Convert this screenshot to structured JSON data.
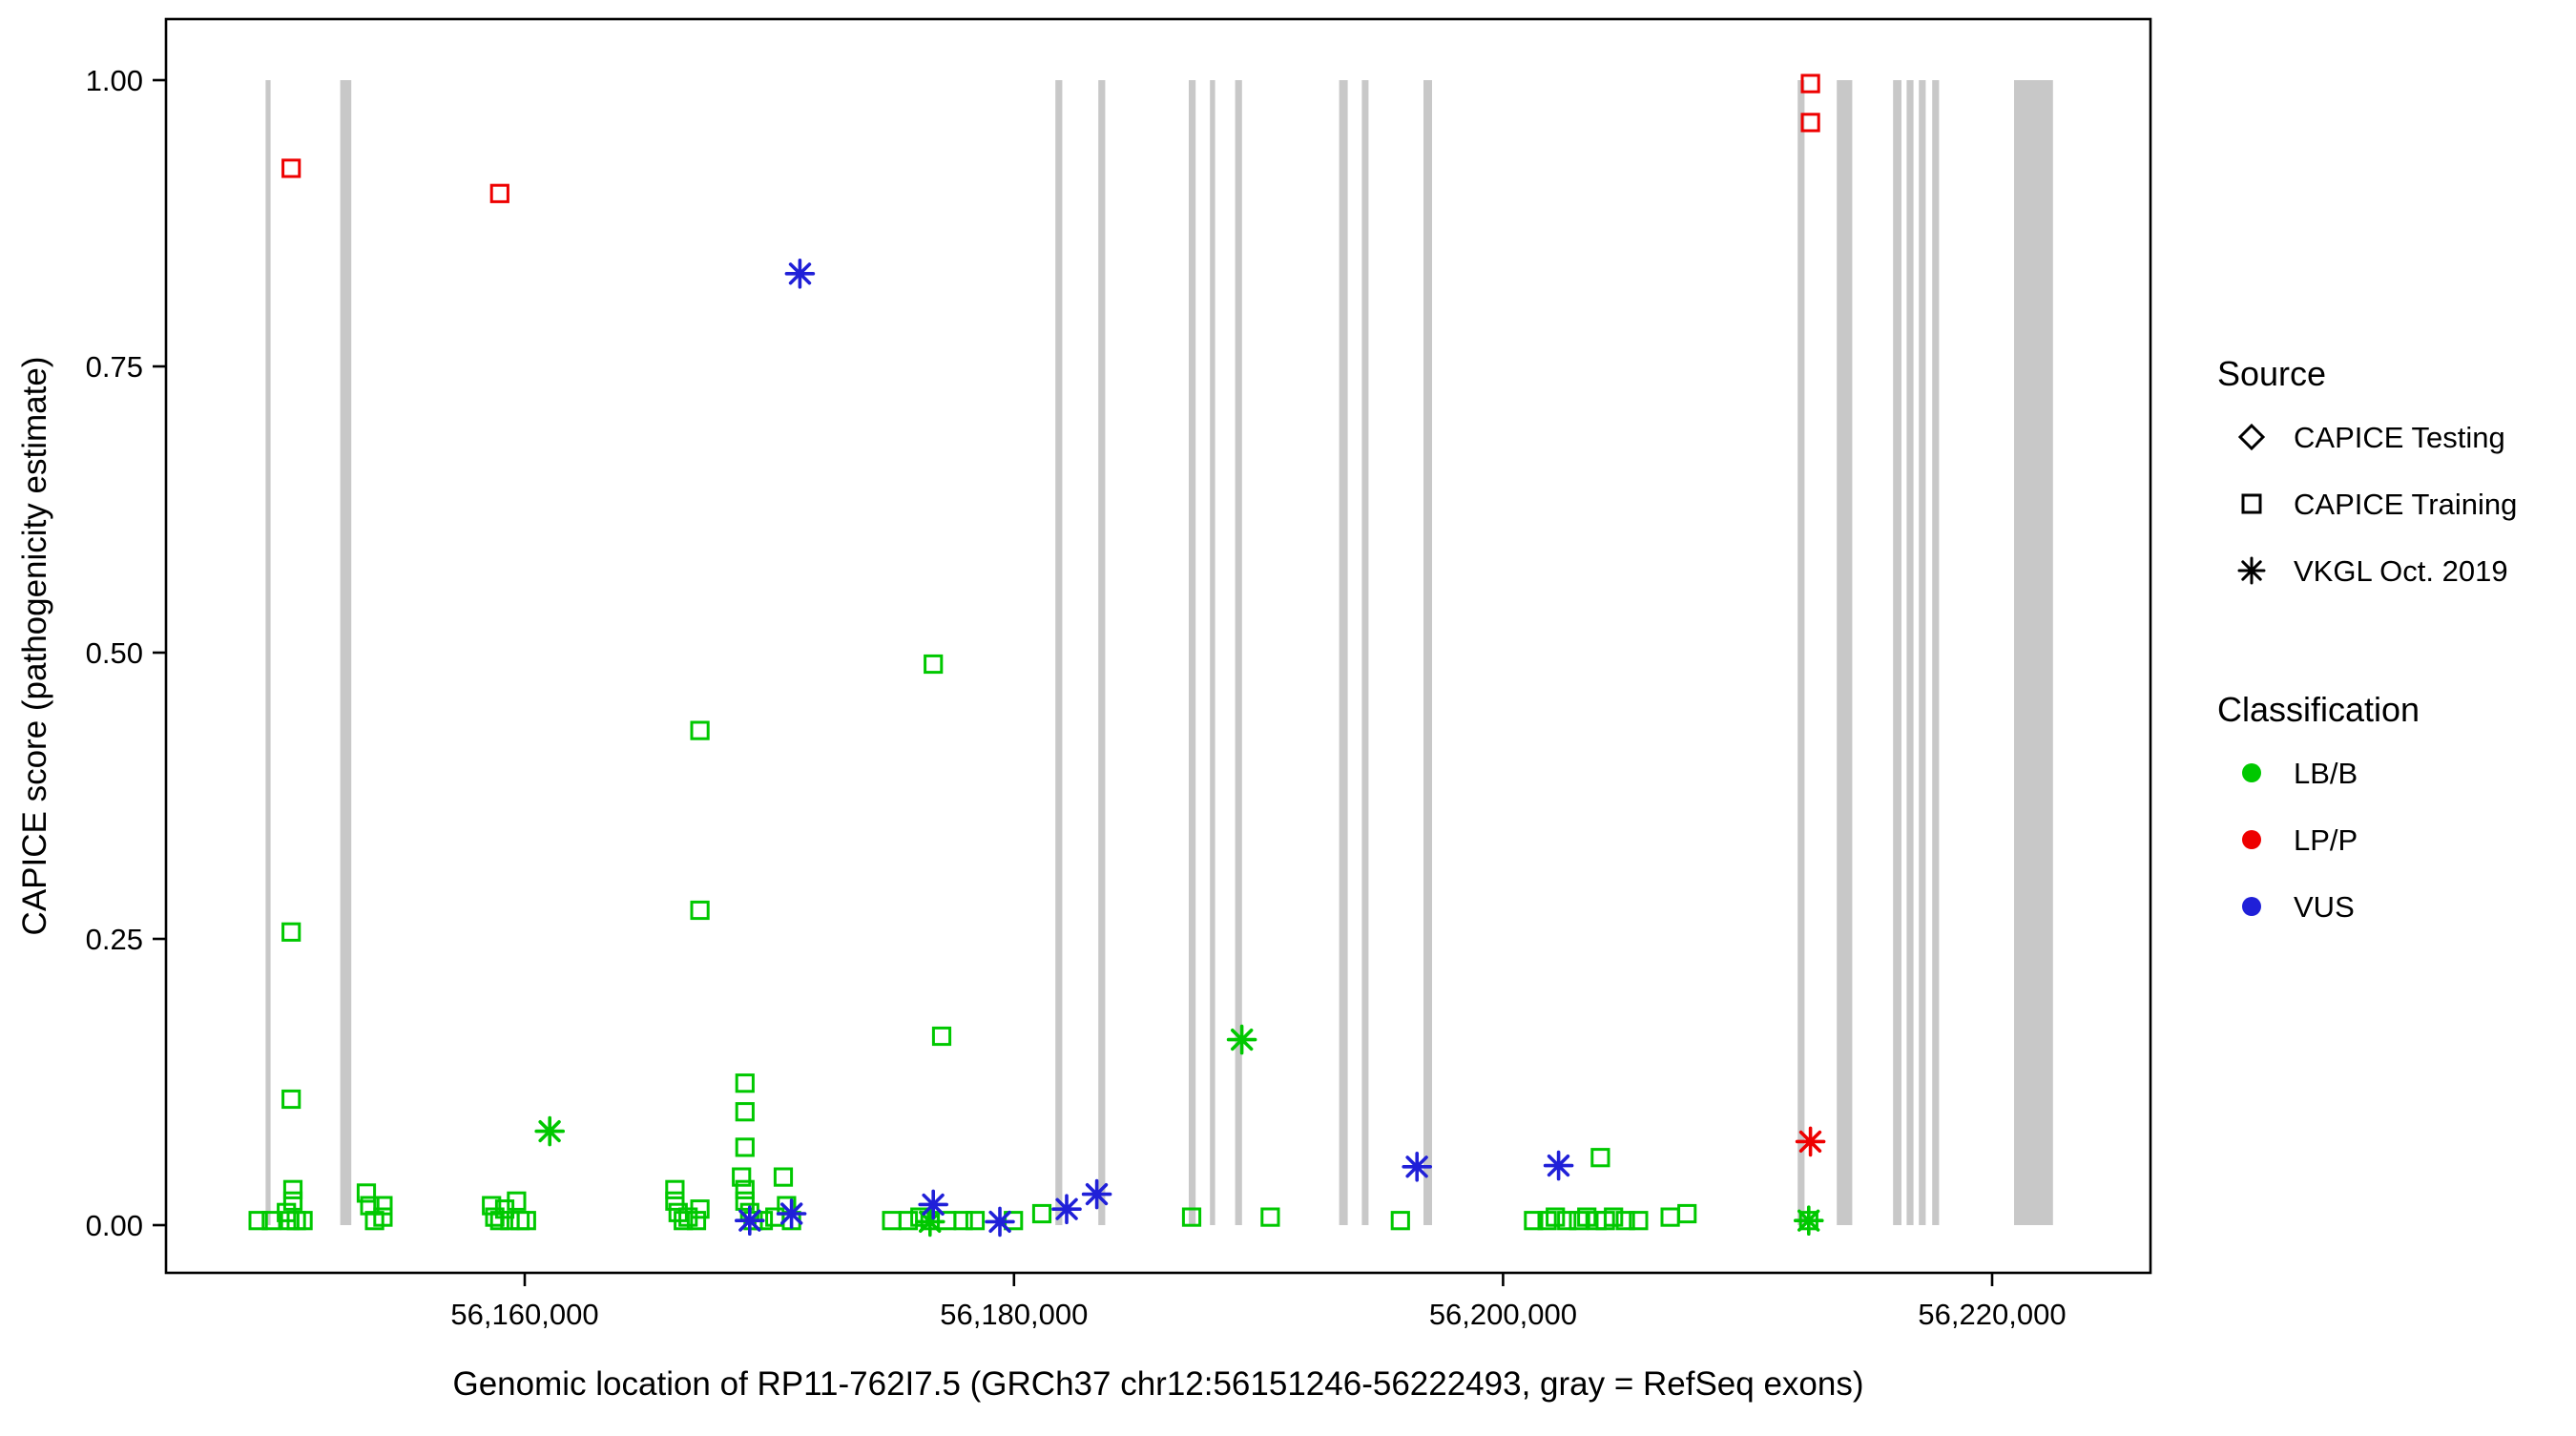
{
  "chart_data": {
    "type": "scatter",
    "title": "",
    "xlabel": "Genomic location of RP11-762I7.5 (GRCh37 chr12:56151246-56222493, gray = RefSeq exons)",
    "ylabel": "CAPICE score (pathogenicity estimate)",
    "xlim": [
      56145330,
      56226475
    ],
    "ylim": [
      0,
      1
    ],
    "grid": "off",
    "x_ticks": [
      {
        "value": 56160000,
        "label": "56,160,000"
      },
      {
        "value": 56180000,
        "label": "56,180,000"
      },
      {
        "value": 56200000,
        "label": "56,200,000"
      },
      {
        "value": 56220000,
        "label": "56,220,000"
      }
    ],
    "y_ticks": [
      {
        "value": 0.0,
        "label": "0.00"
      },
      {
        "value": 0.25,
        "label": "0.25"
      },
      {
        "value": 0.5,
        "label": "0.50"
      },
      {
        "value": 0.75,
        "label": "0.75"
      },
      {
        "value": 1.0,
        "label": "1.00"
      }
    ],
    "exon_color": "#C8C8C8",
    "exons": [
      [
        56149400,
        56149600
      ],
      [
        56152450,
        56152900
      ],
      [
        56181700,
        56181980
      ],
      [
        56183450,
        56183730
      ],
      [
        56187150,
        56187430
      ],
      [
        56188020,
        56188230
      ],
      [
        56189050,
        56189330
      ],
      [
        56193300,
        56193650
      ],
      [
        56194230,
        56194500
      ],
      [
        56196750,
        56197100
      ],
      [
        56212050,
        56212330
      ],
      [
        56213650,
        56214280
      ],
      [
        56215950,
        56216290
      ],
      [
        56216500,
        56216780
      ],
      [
        56217000,
        56217280
      ],
      [
        56217550,
        56217830
      ],
      [
        56220900,
        56222493
      ]
    ],
    "colors": {
      "LB/B": "#00C800",
      "LP/P": "#EE0000",
      "VUS": "#2020D8"
    },
    "series": [
      {
        "source": "CAPICE Training",
        "classification": "LB/B",
        "marker": "square",
        "points": [
          [
            56149100,
            0.004
          ],
          [
            56149640,
            0.004
          ],
          [
            56150250,
            0.011
          ],
          [
            56150390,
            0.004
          ],
          [
            56150520,
            0.021
          ],
          [
            56150520,
            0.031
          ],
          [
            56150660,
            0.004
          ],
          [
            56150930,
            0.004
          ],
          [
            56150450,
            0.11
          ],
          [
            56150450,
            0.256
          ],
          [
            56153520,
            0.028
          ],
          [
            56153660,
            0.017
          ],
          [
            56153860,
            0.004
          ],
          [
            56154200,
            0.007
          ],
          [
            56154200,
            0.017
          ],
          [
            56158640,
            0.017
          ],
          [
            56158770,
            0.007
          ],
          [
            56158980,
            0.004
          ],
          [
            56159180,
            0.014
          ],
          [
            56159390,
            0.004
          ],
          [
            56159660,
            0.021
          ],
          [
            56159800,
            0.004
          ],
          [
            56160070,
            0.004
          ],
          [
            56166140,
            0.031
          ],
          [
            56166140,
            0.021
          ],
          [
            56166270,
            0.011
          ],
          [
            56166480,
            0.004
          ],
          [
            56166680,
            0.007
          ],
          [
            56167020,
            0.004
          ],
          [
            56167160,
            0.014
          ],
          [
            56167160,
            0.432
          ],
          [
            56167160,
            0.275
          ],
          [
            56168860,
            0.042
          ],
          [
            56169000,
            0.124
          ],
          [
            56169000,
            0.099
          ],
          [
            56169000,
            0.068
          ],
          [
            56169000,
            0.031
          ],
          [
            56169000,
            0.021
          ],
          [
            56169200,
            0.011
          ],
          [
            56169340,
            0.004
          ],
          [
            56169750,
            0.004
          ],
          [
            56170230,
            0.007
          ],
          [
            56170570,
            0.042
          ],
          [
            56170700,
            0.017
          ],
          [
            56170910,
            0.004
          ],
          [
            56175000,
            0.004
          ],
          [
            56175680,
            0.004
          ],
          [
            56176160,
            0.007
          ],
          [
            56176570,
            0.004
          ],
          [
            56176700,
            0.49
          ],
          [
            56177050,
            0.165
          ],
          [
            56177250,
            0.004
          ],
          [
            56177930,
            0.004
          ],
          [
            56178410,
            0.004
          ],
          [
            56179980,
            0.004
          ],
          [
            56181140,
            0.01
          ],
          [
            56187270,
            0.007
          ],
          [
            56190480,
            0.007
          ],
          [
            56195800,
            0.004
          ],
          [
            56201250,
            0.004
          ],
          [
            56201800,
            0.004
          ],
          [
            56202140,
            0.007
          ],
          [
            56202610,
            0.004
          ],
          [
            56203090,
            0.004
          ],
          [
            56203430,
            0.007
          ],
          [
            56203840,
            0.004
          ],
          [
            56203980,
            0.059
          ],
          [
            56204180,
            0.004
          ],
          [
            56204520,
            0.007
          ],
          [
            56205000,
            0.004
          ],
          [
            56205540,
            0.004
          ],
          [
            56206840,
            0.007
          ],
          [
            56207520,
            0.01
          ],
          [
            56212500,
            0.004
          ]
        ]
      },
      {
        "source": "CAPICE Training",
        "classification": "LP/P",
        "marker": "square",
        "points": [
          [
            56150450,
            0.923
          ],
          [
            56158980,
            0.901
          ],
          [
            56212570,
            0.997
          ],
          [
            56212570,
            0.963
          ]
        ]
      },
      {
        "source": "VKGL Oct. 2019",
        "classification": "LB/B",
        "marker": "asterisk",
        "points": [
          [
            56161020,
            0.082
          ],
          [
            56176570,
            0.003
          ],
          [
            56189320,
            0.162
          ],
          [
            56212500,
            0.004
          ]
        ]
      },
      {
        "source": "VKGL Oct. 2019",
        "classification": "LP/P",
        "marker": "asterisk",
        "points": [
          [
            56212570,
            0.073
          ]
        ]
      },
      {
        "source": "VKGL Oct. 2019",
        "classification": "VUS",
        "marker": "asterisk",
        "points": [
          [
            56169200,
            0.004
          ],
          [
            56170910,
            0.01
          ],
          [
            56171250,
            0.831
          ],
          [
            56176700,
            0.018
          ],
          [
            56179430,
            0.003
          ],
          [
            56182160,
            0.014
          ],
          [
            56183390,
            0.027
          ],
          [
            56196480,
            0.051
          ],
          [
            56202270,
            0.052
          ]
        ]
      },
      {
        "source": "CAPICE Testing",
        "classification": "LB/B",
        "marker": "diamond",
        "points": []
      }
    ],
    "legend": {
      "source_title": "Source",
      "source_items": [
        {
          "label": "CAPICE Testing",
          "marker": "diamond"
        },
        {
          "label": "CAPICE Training",
          "marker": "square"
        },
        {
          "label": "VKGL Oct. 2019",
          "marker": "asterisk"
        }
      ],
      "classification_title": "Classification",
      "classification_items": [
        {
          "label": "LB/B",
          "color": "#00C800"
        },
        {
          "label": "LP/P",
          "color": "#EE0000"
        },
        {
          "label": "VUS",
          "color": "#2020D8"
        }
      ]
    }
  }
}
